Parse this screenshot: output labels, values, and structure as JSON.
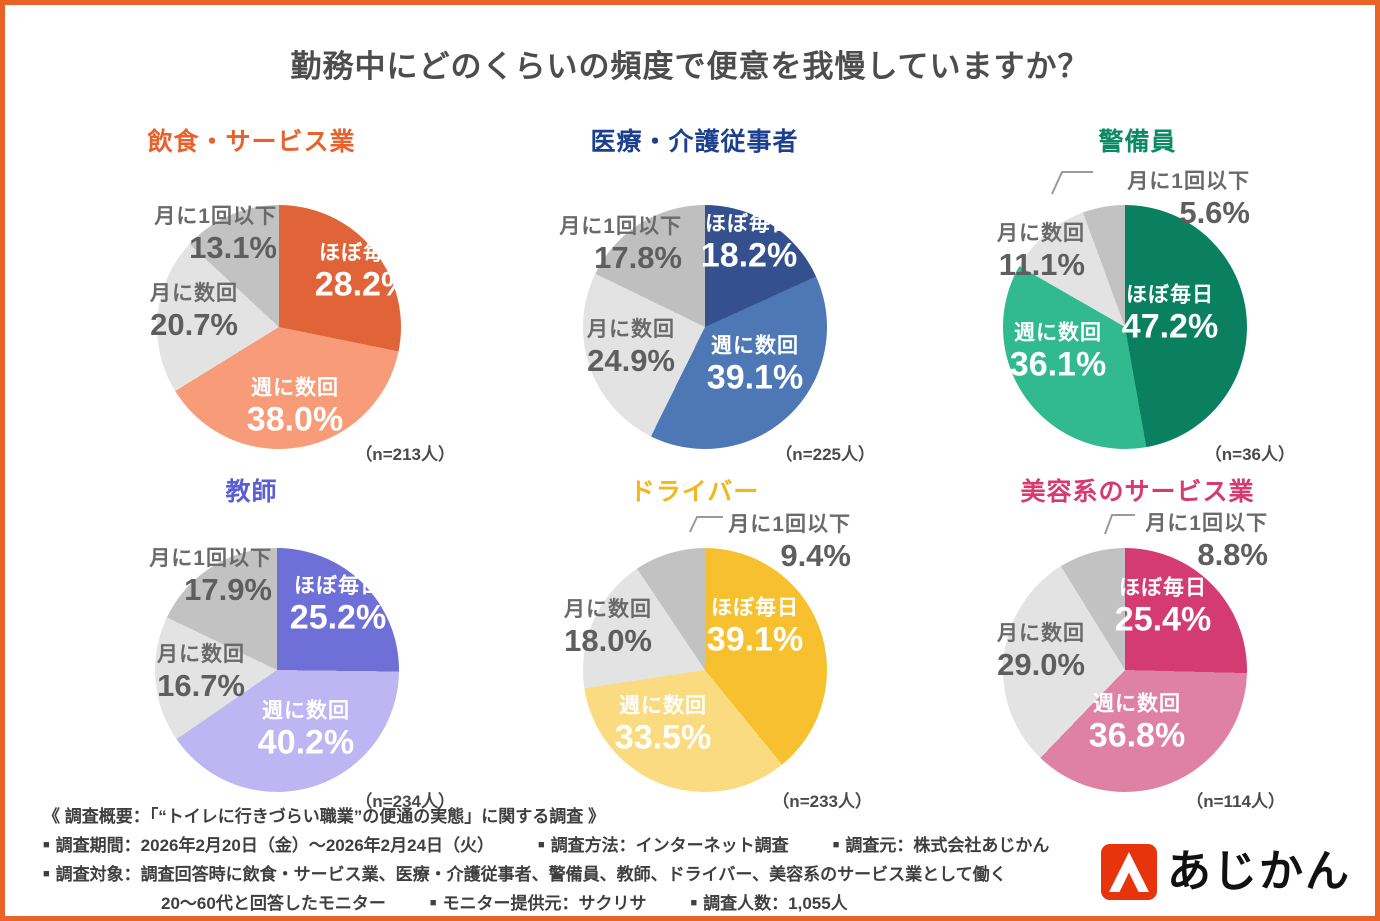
{
  "title": "勤務中にどのくらいの頻度で便意を我慢していますか？",
  "frame_color": "#e96329",
  "chart_data": [
    {
      "type": "pie",
      "title": "飲食・サービス業",
      "accent": "#e8622d",
      "n_label": "（n=213人）",
      "labels": [
        "ほぼ毎日",
        "週に数回",
        "月に数回",
        "月に1回以下"
      ],
      "values": [
        28.2,
        38.0,
        20.7,
        13.1
      ],
      "colors": [
        "#e06437",
        "#f79b78",
        "#e3e3e3",
        "#c2c2c2"
      ],
      "legend_position": "on-slice"
    },
    {
      "type": "pie",
      "title": "医療・介護従事者",
      "accent": "#1c3f8f",
      "n_label": "（n=225人）",
      "labels": [
        "ほぼ毎日",
        "週に数回",
        "月に数回",
        "月に1回以下"
      ],
      "values": [
        18.2,
        39.1,
        24.9,
        17.8
      ],
      "colors": [
        "#35508e",
        "#4d78b5",
        "#e3e3e3",
        "#bfbfbf"
      ],
      "legend_position": "on-slice"
    },
    {
      "type": "pie",
      "title": "警備員",
      "accent": "#0d8a63",
      "n_label": "（n=36人）",
      "labels": [
        "ほぼ毎日",
        "週に数回",
        "月に数回",
        "月に1回以下"
      ],
      "values": [
        47.2,
        36.1,
        11.1,
        5.6
      ],
      "colors": [
        "#0a8061",
        "#31ba8e",
        "#e3e3e3",
        "#c2c2c2"
      ],
      "legend_position": "on-slice"
    },
    {
      "type": "pie",
      "title": "教師",
      "accent": "#5c5fd4",
      "n_label": "（n=234人）",
      "labels": [
        "ほぼ毎日",
        "週に数回",
        "月に数回",
        "月に1回以下"
      ],
      "values": [
        25.2,
        40.2,
        16.7,
        17.9
      ],
      "colors": [
        "#6e70d8",
        "#bdb6f2",
        "#e3e3e3",
        "#c2c2c2"
      ],
      "legend_position": "on-slice"
    },
    {
      "type": "pie",
      "title": "ドライバー",
      "accent": "#f3b71d",
      "n_label": "（n=233人）",
      "labels": [
        "ほぼ毎日",
        "週に数回",
        "月に数回",
        "月に1回以下"
      ],
      "values": [
        39.1,
        33.5,
        18.0,
        9.4
      ],
      "colors": [
        "#f7c02e",
        "#fbdb80",
        "#e3e3e3",
        "#c2c2c2"
      ],
      "legend_position": "on-slice"
    },
    {
      "type": "pie",
      "title": "美容系のサービス業",
      "accent": "#d63a6e",
      "n_label": "（n=114人）",
      "labels": [
        "ほぼ毎日",
        "週に数回",
        "月に数回",
        "月に1回以下"
      ],
      "values": [
        25.4,
        36.8,
        29.0,
        8.8
      ],
      "colors": [
        "#d43b70",
        "#de81a3",
        "#e3e3e3",
        "#c2c2c2"
      ],
      "legend_position": "on-slice"
    }
  ],
  "footer": {
    "survey_overview": "《 調査概要：「“トイレに行きづらい職業”の便通の実態」に関する調査 》",
    "lines": [
      {
        "indent": false,
        "items": [
          {
            "bullet": true,
            "text": "調査期間：2026年2月20日（金）～2026年2月24日（火）"
          },
          {
            "bullet": true,
            "text": "調査方法：インターネット調査"
          },
          {
            "bullet": true,
            "text": "調査元：株式会社あじかん"
          }
        ]
      },
      {
        "indent": false,
        "items": [
          {
            "bullet": true,
            "text": "調査対象：調査回答時に飲食・サービス業、医療・介護従事者、警備員、教師、ドライバー、美容系のサービス業として働く"
          }
        ]
      },
      {
        "indent": true,
        "items": [
          {
            "bullet": false,
            "text": "20～60代と回答したモニター"
          },
          {
            "bullet": true,
            "text": "モニター提供元：サクリサ"
          },
          {
            "bullet": true,
            "text": "調査人数：1,055人"
          }
        ]
      }
    ]
  },
  "logo": {
    "text": "あじかん",
    "mark_color": "#e8340c"
  }
}
